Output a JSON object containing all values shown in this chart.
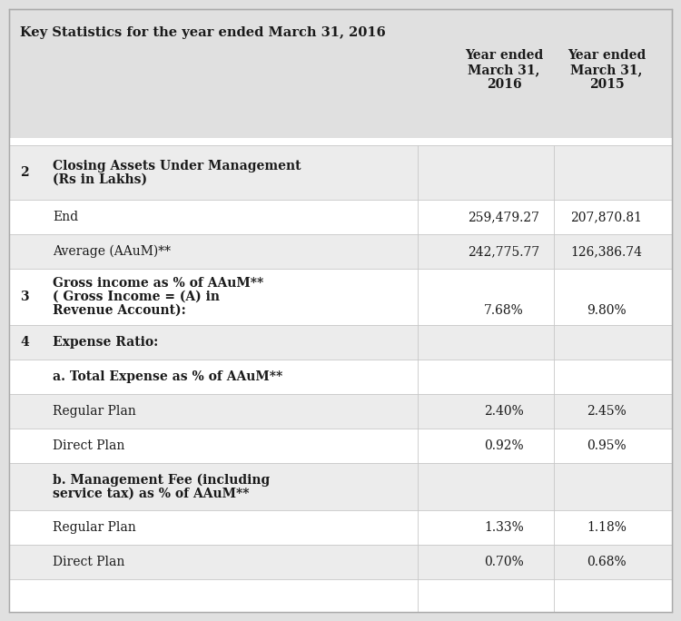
{
  "title": "Key Statistics for the year ended March 31, 2016",
  "col1_header": "Year ended\nMarch 31,\n2016",
  "col2_header": "Year ended\nMarch 31,\n2015",
  "bg_color": "#e0e0e0",
  "white_color": "#ffffff",
  "border_color": "#aaaaaa",
  "divider_color": "#c8c8c8",
  "text_color": "#1a1a1a",
  "figw": 7.5,
  "figh": 6.84,
  "dpi": 100,
  "rows": [
    {
      "num": "2",
      "label": "Closing Assets Under Management\n(Rs in Lakhs)",
      "v2016": "",
      "v2015": "",
      "bold_label": true,
      "bold_num": true
    },
    {
      "num": "",
      "label": "End",
      "v2016": "259,479.27",
      "v2015": "207,870.81",
      "bold_label": false,
      "bold_num": false
    },
    {
      "num": "",
      "label": "Average (AAuM)**",
      "v2016": "242,775.77",
      "v2015": "126,386.74",
      "bold_label": false,
      "bold_num": false
    },
    {
      "num": "3",
      "label": "Gross income as % of AAuM**\n( Gross Income = (A) in\nRevenue Account):",
      "v2016": "7.68%",
      "v2015": "9.80%",
      "bold_label": true,
      "bold_num": true
    },
    {
      "num": "4",
      "label": "Expense Ratio:",
      "v2016": "",
      "v2015": "",
      "bold_label": true,
      "bold_num": true
    },
    {
      "num": "",
      "label": "a. Total Expense as % of AAuM**",
      "v2016": "",
      "v2015": "",
      "bold_label": true,
      "bold_num": false
    },
    {
      "num": "",
      "label": "Regular Plan",
      "v2016": "2.40%",
      "v2015": "2.45%",
      "bold_label": false,
      "bold_num": false
    },
    {
      "num": "",
      "label": "Direct Plan",
      "v2016": "0.92%",
      "v2015": "0.95%",
      "bold_label": false,
      "bold_num": false
    },
    {
      "num": "",
      "label": "b. Management Fee (including\nservice tax) as % of AAuM**",
      "v2016": "",
      "v2015": "",
      "bold_label": true,
      "bold_num": false
    },
    {
      "num": "",
      "label": "Regular Plan",
      "v2016": "1.33%",
      "v2015": "1.18%",
      "bold_label": false,
      "bold_num": false
    },
    {
      "num": "",
      "label": "Direct Plan",
      "v2016": "0.70%",
      "v2015": "0.68%",
      "bold_label": false,
      "bold_num": false
    }
  ]
}
